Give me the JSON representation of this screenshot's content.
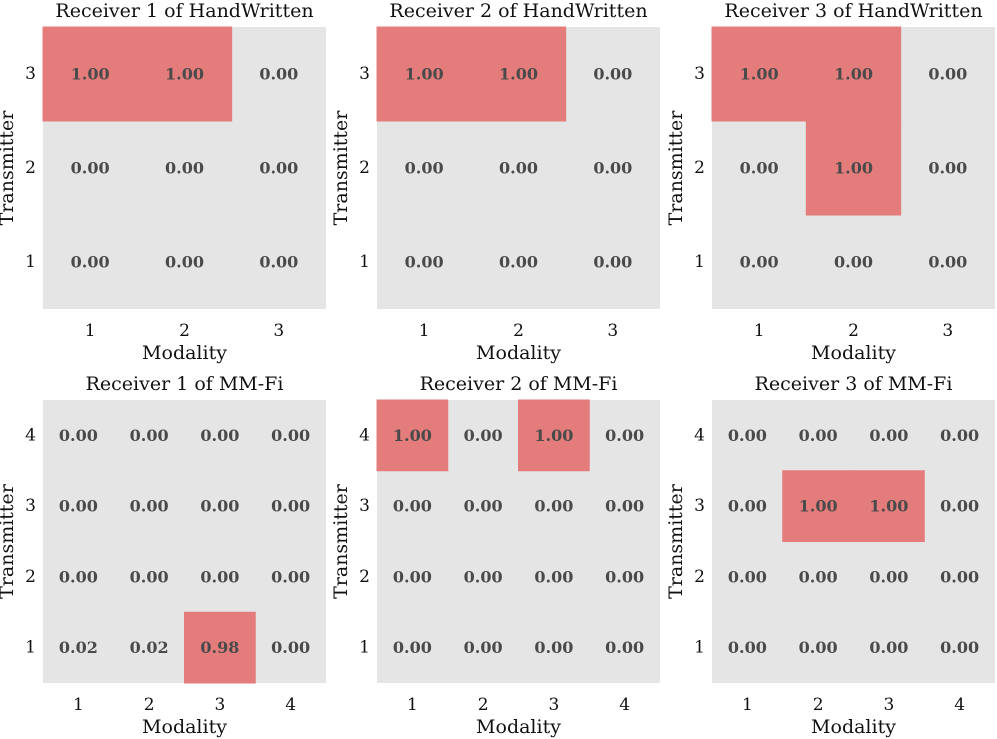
{
  "colors": {
    "background": "#e5e5e5",
    "highlight": "#e47c7c",
    "value_text": "#4a4a4a",
    "axis_text": "#111111"
  },
  "chart_data": [
    {
      "type": "heatmap",
      "title": "Receiver 1 of HandWritten",
      "xlabel": "Modality",
      "ylabel": "Transmitter",
      "x_ticks": [
        "1",
        "2",
        "3"
      ],
      "y_ticks": [
        "3",
        "2",
        "1"
      ],
      "values": [
        [
          1.0,
          1.0,
          0.0
        ],
        [
          0.0,
          0.0,
          0.0
        ],
        [
          0.0,
          0.0,
          0.0
        ]
      ],
      "labels": [
        [
          "1.00",
          "1.00",
          "0.00"
        ],
        [
          "0.00",
          "0.00",
          "0.00"
        ],
        [
          "0.00",
          "0.00",
          "0.00"
        ]
      ]
    },
    {
      "type": "heatmap",
      "title": "Receiver 2 of HandWritten",
      "xlabel": "Modality",
      "ylabel": "Transmitter",
      "x_ticks": [
        "1",
        "2",
        "3"
      ],
      "y_ticks": [
        "3",
        "2",
        "1"
      ],
      "values": [
        [
          1.0,
          1.0,
          0.0
        ],
        [
          0.0,
          0.0,
          0.0
        ],
        [
          0.0,
          0.0,
          0.0
        ]
      ],
      "labels": [
        [
          "1.00",
          "1.00",
          "0.00"
        ],
        [
          "0.00",
          "0.00",
          "0.00"
        ],
        [
          "0.00",
          "0.00",
          "0.00"
        ]
      ]
    },
    {
      "type": "heatmap",
      "title": "Receiver 3 of HandWritten",
      "xlabel": "Modality",
      "ylabel": "Transmitter",
      "x_ticks": [
        "1",
        "2",
        "3"
      ],
      "y_ticks": [
        "3",
        "2",
        "1"
      ],
      "values": [
        [
          1.0,
          1.0,
          0.0
        ],
        [
          0.0,
          1.0,
          0.0
        ],
        [
          0.0,
          0.0,
          0.0
        ]
      ],
      "labels": [
        [
          "1.00",
          "1.00",
          "0.00"
        ],
        [
          "0.00",
          "1.00",
          "0.00"
        ],
        [
          "0.00",
          "0.00",
          "0.00"
        ]
      ]
    },
    {
      "type": "heatmap",
      "title": "Receiver 1 of MM-Fi",
      "xlabel": "Modality",
      "ylabel": "Transmitter",
      "x_ticks": [
        "1",
        "2",
        "3",
        "4"
      ],
      "y_ticks": [
        "4",
        "3",
        "2",
        "1"
      ],
      "values": [
        [
          0.0,
          0.0,
          0.0,
          0.0
        ],
        [
          0.0,
          0.0,
          0.0,
          0.0
        ],
        [
          0.0,
          0.0,
          0.0,
          0.0
        ],
        [
          0.02,
          0.02,
          0.98,
          0.0
        ]
      ],
      "labels": [
        [
          "0.00",
          "0.00",
          "0.00",
          "0.00"
        ],
        [
          "0.00",
          "0.00",
          "0.00",
          "0.00"
        ],
        [
          "0.00",
          "0.00",
          "0.00",
          "0.00"
        ],
        [
          "0.02",
          "0.02",
          "0.98",
          "0.00"
        ]
      ]
    },
    {
      "type": "heatmap",
      "title": "Receiver 2 of MM-Fi",
      "xlabel": "Modality",
      "ylabel": "Transmitter",
      "x_ticks": [
        "1",
        "2",
        "3",
        "4"
      ],
      "y_ticks": [
        "4",
        "3",
        "2",
        "1"
      ],
      "values": [
        [
          1.0,
          0.0,
          1.0,
          0.0
        ],
        [
          0.0,
          0.0,
          0.0,
          0.0
        ],
        [
          0.0,
          0.0,
          0.0,
          0.0
        ],
        [
          0.0,
          0.0,
          0.0,
          0.0
        ]
      ],
      "labels": [
        [
          "1.00",
          "0.00",
          "1.00",
          "0.00"
        ],
        [
          "0.00",
          "0.00",
          "0.00",
          "0.00"
        ],
        [
          "0.00",
          "0.00",
          "0.00",
          "0.00"
        ],
        [
          "0.00",
          "0.00",
          "0.00",
          "0.00"
        ]
      ]
    },
    {
      "type": "heatmap",
      "title": "Receiver 3 of MM-Fi",
      "xlabel": "Modality",
      "ylabel": "Transmitter",
      "x_ticks": [
        "1",
        "2",
        "3",
        "4"
      ],
      "y_ticks": [
        "4",
        "3",
        "2",
        "1"
      ],
      "values": [
        [
          0.0,
          0.0,
          0.0,
          0.0
        ],
        [
          0.0,
          1.0,
          1.0,
          0.0
        ],
        [
          0.0,
          0.0,
          0.0,
          0.0
        ],
        [
          0.0,
          0.0,
          0.0,
          0.0
        ]
      ],
      "labels": [
        [
          "0.00",
          "0.00",
          "0.00",
          "0.00"
        ],
        [
          "0.00",
          "1.00",
          "1.00",
          "0.00"
        ],
        [
          "0.00",
          "0.00",
          "0.00",
          "0.00"
        ],
        [
          "0.00",
          "0.00",
          "0.00",
          "0.00"
        ]
      ]
    }
  ]
}
